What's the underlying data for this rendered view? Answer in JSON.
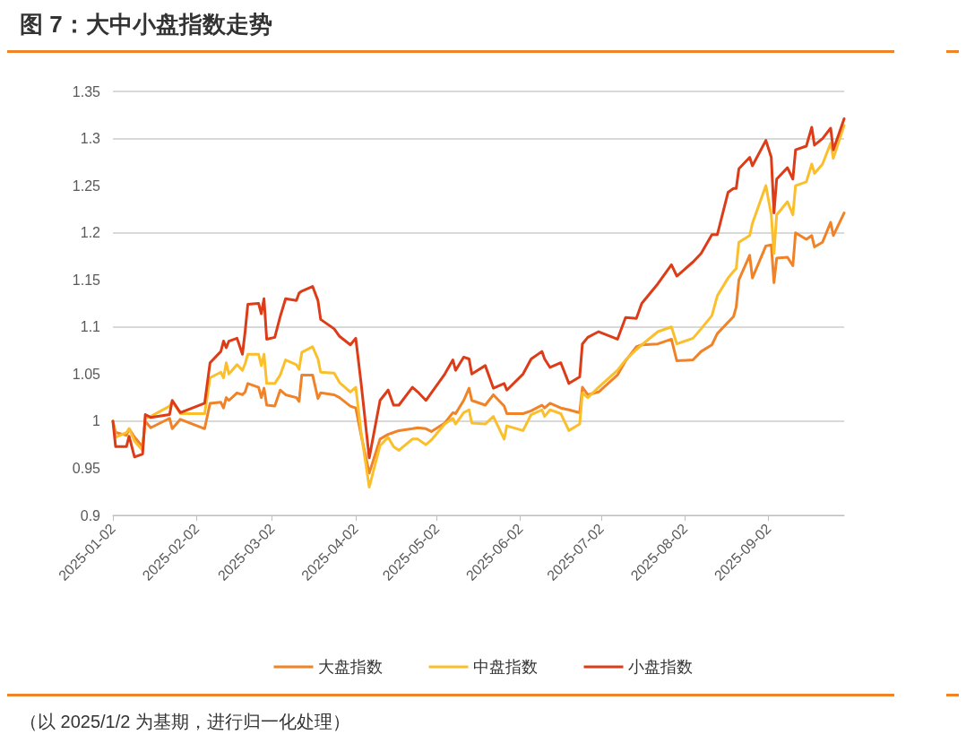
{
  "chart_data": {
    "type": "line",
    "title": "图 7：大中小盘指数走势",
    "annotations": [
      "（以 2025/1/2 为基期，进行归一化处理）"
    ],
    "x": [
      "2025-01-02",
      "2025-01-03",
      "2025-01-07",
      "2025-01-08",
      "2025-01-10",
      "2025-01-13",
      "2025-01-14",
      "2025-01-16",
      "2025-01-23",
      "2025-01-24",
      "2025-01-27",
      "2025-02-05",
      "2025-02-07",
      "2025-02-11",
      "2025-02-12",
      "2025-02-13",
      "2025-02-14",
      "2025-02-17",
      "2025-02-19",
      "2025-02-20",
      "2025-02-21",
      "2025-02-25",
      "2025-02-26",
      "2025-02-27",
      "2025-02-28",
      "2025-03-03",
      "2025-03-05",
      "2025-03-07",
      "2025-03-11",
      "2025-03-12",
      "2025-03-13",
      "2025-03-17",
      "2025-03-19",
      "2025-03-20",
      "2025-03-25",
      "2025-03-27",
      "2025-03-31",
      "2025-04-02",
      "2025-04-04",
      "2025-04-07",
      "2025-04-11",
      "2025-04-14",
      "2025-04-16",
      "2025-04-18",
      "2025-04-23",
      "2025-04-25",
      "2025-04-28",
      "2025-04-30",
      "2025-05-05",
      "2025-05-08",
      "2025-05-09",
      "2025-05-12",
      "2025-05-14",
      "2025-05-15",
      "2025-05-20",
      "2025-05-23",
      "2025-05-27",
      "2025-05-28",
      "2025-06-03",
      "2025-06-06",
      "2025-06-10",
      "2025-06-11",
      "2025-06-13",
      "2025-06-17",
      "2025-06-20",
      "2025-06-24",
      "2025-06-25",
      "2025-06-27",
      "2025-07-01",
      "2025-07-08",
      "2025-07-11",
      "2025-07-15",
      "2025-07-17",
      "2025-07-23",
      "2025-07-28",
      "2025-07-30",
      "2025-08-05",
      "2025-08-08",
      "2025-08-12",
      "2025-08-14",
      "2025-08-18",
      "2025-08-20",
      "2025-08-21",
      "2025-08-22",
      "2025-08-26",
      "2025-08-27",
      "2025-09-01",
      "2025-09-03",
      "2025-09-04",
      "2025-09-05",
      "2025-09-09",
      "2025-09-11",
      "2025-09-12",
      "2025-09-16",
      "2025-09-18",
      "2025-09-19",
      "2025-09-22",
      "2025-09-25",
      "2025-09-26",
      "2025-09-30"
    ],
    "series": [
      {
        "name": "大盘指数",
        "color": "#f08228",
        "values": [
          1.0,
          0.988,
          0.985,
          0.992,
          0.983,
          0.973,
          1.0,
          0.993,
          1.003,
          0.992,
          1.002,
          0.992,
          1.019,
          1.02,
          1.014,
          1.025,
          1.022,
          1.03,
          1.028,
          1.031,
          1.04,
          1.036,
          1.025,
          1.035,
          1.017,
          1.016,
          1.033,
          1.028,
          1.025,
          1.021,
          1.049,
          1.049,
          1.024,
          1.03,
          1.028,
          1.025,
          1.016,
          1.014,
          0.985,
          0.945,
          0.981,
          0.986,
          0.988,
          0.99,
          0.992,
          0.993,
          0.992,
          0.989,
          0.998,
          1.009,
          1.008,
          1.022,
          1.035,
          1.022,
          1.017,
          1.028,
          1.016,
          1.008,
          1.008,
          1.011,
          1.017,
          1.014,
          1.019,
          1.014,
          1.012,
          1.009,
          1.036,
          1.028,
          1.031,
          1.049,
          1.064,
          1.079,
          1.081,
          1.082,
          1.087,
          1.064,
          1.065,
          1.074,
          1.081,
          1.093,
          1.105,
          1.111,
          1.121,
          1.15,
          1.176,
          1.152,
          1.186,
          1.187,
          1.147,
          1.173,
          1.174,
          1.165,
          1.2,
          1.193,
          1.197,
          1.185,
          1.19,
          1.211,
          1.197,
          1.221
        ]
      },
      {
        "name": "中盘指数",
        "color": "#fbbf2c",
        "values": [
          1.0,
          0.983,
          0.988,
          0.992,
          0.979,
          0.969,
          1.003,
          1.005,
          1.016,
          1.021,
          1.008,
          1.008,
          1.046,
          1.052,
          1.046,
          1.062,
          1.05,
          1.06,
          1.054,
          1.061,
          1.071,
          1.071,
          1.059,
          1.071,
          1.04,
          1.04,
          1.049,
          1.065,
          1.06,
          1.055,
          1.073,
          1.079,
          1.066,
          1.052,
          1.051,
          1.041,
          1.031,
          1.036,
          0.988,
          0.93,
          0.974,
          0.983,
          0.973,
          0.969,
          0.981,
          0.981,
          0.975,
          0.98,
          0.997,
          1.003,
          0.997,
          1.009,
          1.012,
          0.998,
          0.997,
          1.005,
          0.981,
          0.995,
          0.99,
          1.007,
          1.012,
          1.005,
          1.012,
          1.008,
          0.99,
          0.997,
          1.03,
          1.025,
          1.036,
          1.054,
          1.065,
          1.076,
          1.081,
          1.095,
          1.1,
          1.082,
          1.088,
          1.098,
          1.112,
          1.133,
          1.152,
          1.159,
          1.162,
          1.19,
          1.197,
          1.21,
          1.25,
          1.219,
          1.178,
          1.219,
          1.233,
          1.219,
          1.25,
          1.254,
          1.273,
          1.263,
          1.273,
          1.295,
          1.279,
          1.314
        ]
      },
      {
        "name": "小盘指数",
        "color": "#dc3c18",
        "values": [
          1.0,
          0.973,
          0.973,
          0.984,
          0.962,
          0.965,
          1.007,
          1.004,
          1.007,
          1.022,
          1.009,
          1.019,
          1.062,
          1.074,
          1.085,
          1.078,
          1.085,
          1.088,
          1.071,
          1.095,
          1.124,
          1.125,
          1.114,
          1.13,
          1.087,
          1.089,
          1.111,
          1.13,
          1.128,
          1.136,
          1.138,
          1.143,
          1.128,
          1.108,
          1.098,
          1.09,
          1.081,
          1.088,
          1.04,
          0.961,
          1.022,
          1.033,
          1.017,
          1.017,
          1.036,
          1.031,
          1.022,
          1.03,
          1.05,
          1.065,
          1.054,
          1.068,
          1.066,
          1.05,
          1.059,
          1.035,
          1.04,
          1.033,
          1.05,
          1.066,
          1.074,
          1.066,
          1.057,
          1.062,
          1.04,
          1.047,
          1.082,
          1.089,
          1.095,
          1.087,
          1.11,
          1.109,
          1.125,
          1.146,
          1.166,
          1.154,
          1.169,
          1.178,
          1.198,
          1.198,
          1.243,
          1.247,
          1.247,
          1.268,
          1.28,
          1.271,
          1.298,
          1.28,
          1.221,
          1.257,
          1.269,
          1.257,
          1.288,
          1.292,
          1.312,
          1.293,
          1.3,
          1.311,
          1.288,
          1.321
        ]
      }
    ],
    "xlim": [
      "2025-01-02",
      "2025-09-30"
    ],
    "xticks": [
      "2025-01-02",
      "2025-02-02",
      "2025-03-02",
      "2025-04-02",
      "2025-05-02",
      "2025-06-02",
      "2025-07-02",
      "2025-08-02",
      "2025-09-02"
    ],
    "ylim": [
      0.9,
      1.35
    ],
    "yticks": [
      0.9,
      0.95,
      1,
      1.05,
      1.1,
      1.15,
      1.2,
      1.25,
      1.3,
      1.35
    ],
    "grid": "y",
    "legend": "bottom",
    "marker": "none",
    "line_style": "solid"
  }
}
